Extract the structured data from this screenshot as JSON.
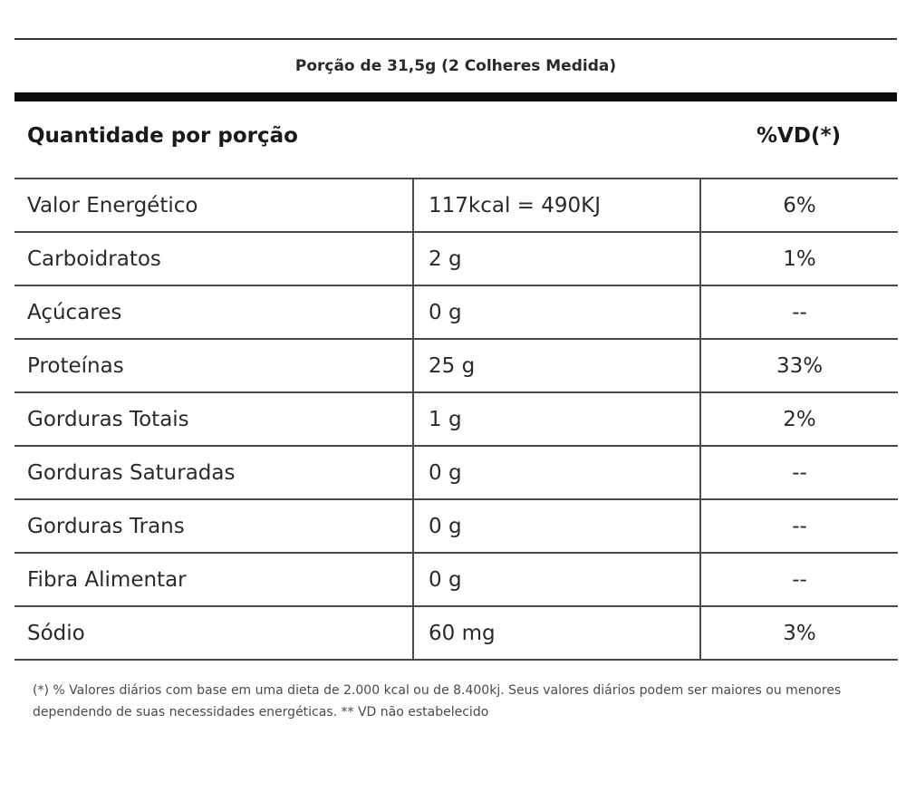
{
  "serving_size": "Porção de 31,5g (2 Colheres Medida)",
  "header": {
    "quantity_label": "Quantidade por porção",
    "vd_label": "%VD(*)"
  },
  "rows": [
    {
      "name": "Valor Energético",
      "amount": "117kcal = 490KJ",
      "vd": "6%"
    },
    {
      "name": "Carboidratos",
      "amount": "2 g",
      "vd": "1%"
    },
    {
      "name": "Açúcares",
      "amount": "0 g",
      "vd": "--"
    },
    {
      "name": "Proteínas",
      "amount": "25 g",
      "vd": "33%"
    },
    {
      "name": "Gorduras Totais",
      "amount": "1 g",
      "vd": "2%"
    },
    {
      "name": "Gorduras Saturadas",
      "amount": "0 g",
      "vd": "--"
    },
    {
      "name": "Gorduras Trans",
      "amount": "0 g",
      "vd": "--"
    },
    {
      "name": "Fibra Alimentar",
      "amount": "0 g",
      "vd": "--"
    },
    {
      "name": "Sódio",
      "amount": "60 mg",
      "vd": "3%"
    }
  ],
  "footnote": "(*) % Valores diários com base em uma dieta de 2.000 kcal ou de 8.400kj. Seus valores diários podem ser maiores ou menores dependendo de suas necessidades energéticas. ** VD não estabelecido"
}
